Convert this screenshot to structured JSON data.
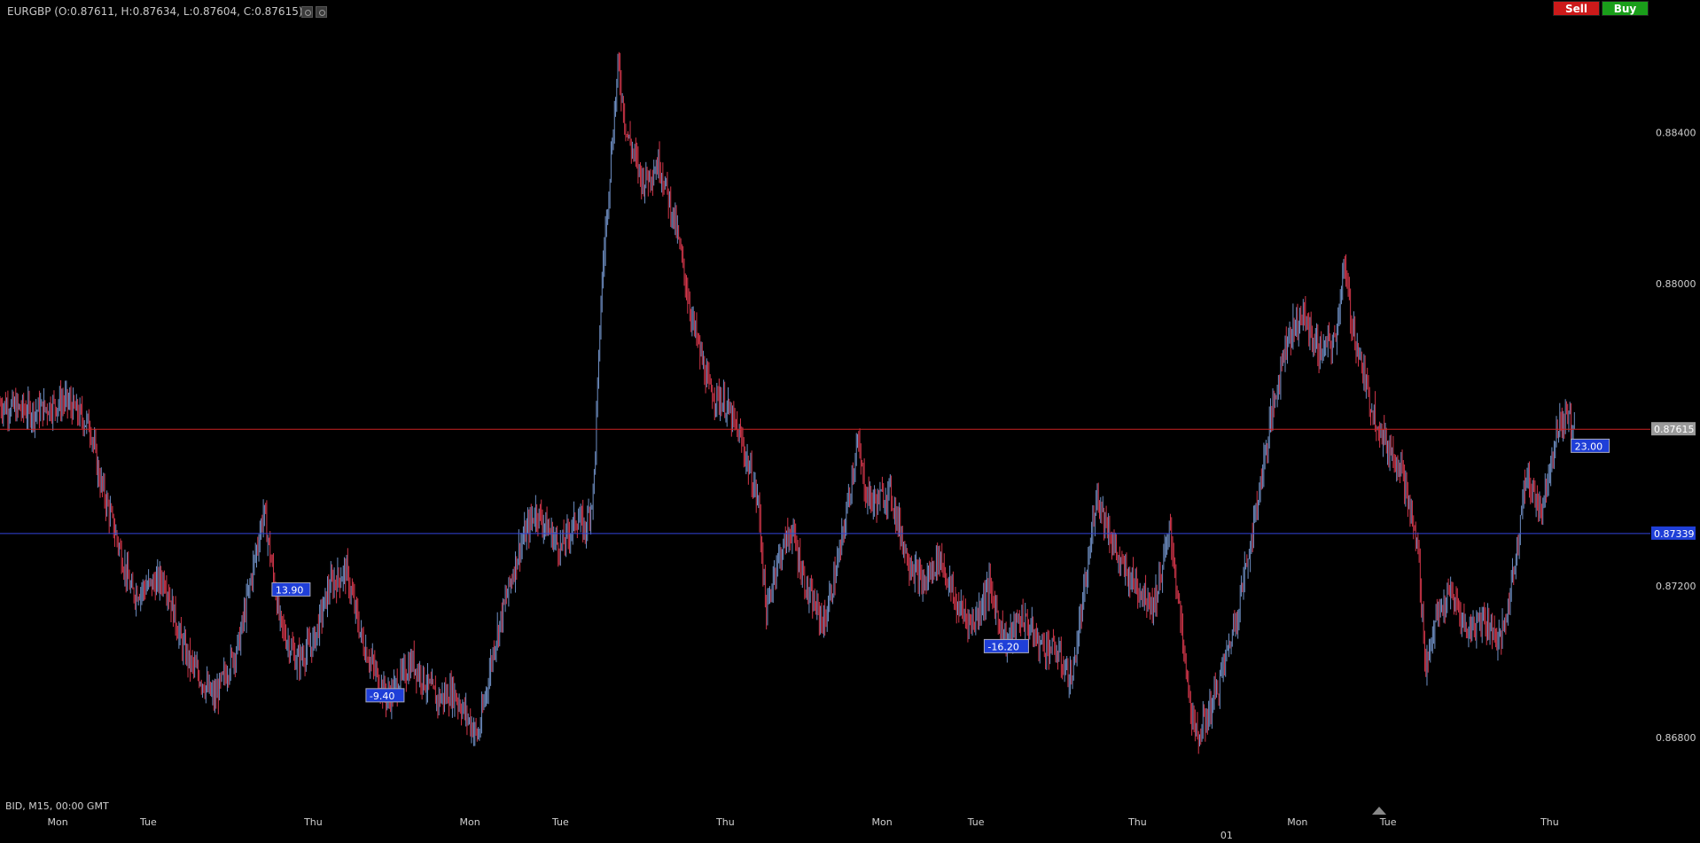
{
  "header": {
    "symbol_info": "EURGBP (O:0.87611, H:0.87634, L:0.87604, C:0.87615)",
    "sell_label": "Sell",
    "buy_label": "Buy",
    "icons": [
      "settings-icon",
      "gear-icon"
    ]
  },
  "status_text": "BID, M15, 00:00 GMT",
  "colors": {
    "background": "#000000",
    "up_candle": "#6f8fc4",
    "down_candle": "#d2364a",
    "price_line": "#cc2222",
    "order_line": "#3344dd",
    "label_blue": "#1f3fd8",
    "current_price_bg": "#9a9a9a"
  },
  "price_lines": {
    "current": "0.87615",
    "order": "0.87339"
  },
  "trade_labels": [
    {
      "text": "13.90",
      "price": 0.8719
    },
    {
      "text": "-9.40",
      "price": 0.8691
    },
    {
      "text": "-16.20",
      "price": 0.8704
    },
    {
      "text": "23.00",
      "price": 0.8757
    }
  ],
  "chart_data": {
    "type": "candlestick",
    "instrument": "EURGBP",
    "timeframe": "M15",
    "ylim": [
      0.8664,
      0.8868
    ],
    "y_ticks": [
      "0.88400",
      "0.88000",
      "0.87200",
      "0.86800"
    ],
    "x_ticks": [
      "Mon",
      "Tue",
      "Thu",
      "Mon",
      "Tue",
      "Thu",
      "Mon",
      "Tue",
      "Thu",
      "01",
      "Mon",
      "Tue",
      "Thu"
    ],
    "close_path": [
      [
        0,
        0.8768
      ],
      [
        0.02,
        0.8766
      ],
      [
        0.04,
        0.8769
      ],
      [
        0.055,
        0.8762
      ],
      [
        0.06,
        0.8749
      ],
      [
        0.07,
        0.8734
      ],
      [
        0.08,
        0.8718
      ],
      [
        0.1,
        0.8722
      ],
      [
        0.11,
        0.8705
      ],
      [
        0.115,
        0.87
      ],
      [
        0.13,
        0.869
      ],
      [
        0.145,
        0.8705
      ],
      [
        0.16,
        0.874
      ],
      [
        0.17,
        0.871
      ],
      [
        0.18,
        0.87
      ],
      [
        0.19,
        0.8705
      ],
      [
        0.2,
        0.872
      ],
      [
        0.21,
        0.8724
      ],
      [
        0.22,
        0.8705
      ],
      [
        0.235,
        0.869
      ],
      [
        0.25,
        0.87
      ],
      [
        0.265,
        0.869
      ],
      [
        0.275,
        0.8692
      ],
      [
        0.29,
        0.868
      ],
      [
        0.3,
        0.8705
      ],
      [
        0.315,
        0.873
      ],
      [
        0.325,
        0.874
      ],
      [
        0.34,
        0.873
      ],
      [
        0.35,
        0.8738
      ],
      [
        0.355,
        0.8735
      ],
      [
        0.36,
        0.8745
      ],
      [
        0.365,
        0.88
      ],
      [
        0.37,
        0.883
      ],
      [
        0.375,
        0.8858
      ],
      [
        0.38,
        0.884
      ],
      [
        0.39,
        0.8827
      ],
      [
        0.4,
        0.8832
      ],
      [
        0.41,
        0.8815
      ],
      [
        0.42,
        0.879
      ],
      [
        0.43,
        0.8772
      ],
      [
        0.44,
        0.8768
      ],
      [
        0.45,
        0.8758
      ],
      [
        0.46,
        0.8742
      ],
      [
        0.465,
        0.8712
      ],
      [
        0.47,
        0.8725
      ],
      [
        0.48,
        0.8735
      ],
      [
        0.49,
        0.8718
      ],
      [
        0.5,
        0.871
      ],
      [
        0.51,
        0.873
      ],
      [
        0.52,
        0.8758
      ],
      [
        0.525,
        0.8745
      ],
      [
        0.53,
        0.8742
      ],
      [
        0.54,
        0.8745
      ],
      [
        0.55,
        0.8728
      ],
      [
        0.56,
        0.872
      ],
      [
        0.57,
        0.8728
      ],
      [
        0.58,
        0.8715
      ],
      [
        0.59,
        0.871
      ],
      [
        0.6,
        0.872
      ],
      [
        0.61,
        0.8705
      ],
      [
        0.62,
        0.8712
      ],
      [
        0.63,
        0.8705
      ],
      [
        0.64,
        0.8703
      ],
      [
        0.65,
        0.8695
      ],
      [
        0.66,
        0.8725
      ],
      [
        0.665,
        0.8745
      ],
      [
        0.67,
        0.8738
      ],
      [
        0.68,
        0.8725
      ],
      [
        0.69,
        0.872
      ],
      [
        0.7,
        0.8715
      ],
      [
        0.71,
        0.8735
      ],
      [
        0.72,
        0.8695
      ],
      [
        0.725,
        0.868
      ],
      [
        0.73,
        0.8683
      ],
      [
        0.74,
        0.8695
      ],
      [
        0.75,
        0.8712
      ],
      [
        0.76,
        0.8735
      ],
      [
        0.77,
        0.8762
      ],
      [
        0.78,
        0.8785
      ],
      [
        0.79,
        0.8792
      ],
      [
        0.8,
        0.8782
      ],
      [
        0.81,
        0.8785
      ],
      [
        0.815,
        0.8805
      ],
      [
        0.82,
        0.879
      ],
      [
        0.83,
        0.877
      ],
      [
        0.84,
        0.8758
      ],
      [
        0.85,
        0.8752
      ],
      [
        0.855,
        0.874
      ],
      [
        0.86,
        0.873
      ],
      [
        0.865,
        0.8698
      ],
      [
        0.87,
        0.871
      ],
      [
        0.88,
        0.8718
      ],
      [
        0.89,
        0.8708
      ],
      [
        0.9,
        0.8712
      ],
      [
        0.91,
        0.8705
      ],
      [
        0.915,
        0.8715
      ],
      [
        0.92,
        0.873
      ],
      [
        0.925,
        0.8748
      ],
      [
        0.93,
        0.8745
      ],
      [
        0.935,
        0.874
      ],
      [
        0.94,
        0.8752
      ],
      [
        0.945,
        0.8762
      ],
      [
        0.95,
        0.8765
      ],
      [
        0.955,
        0.8762
      ]
    ]
  }
}
